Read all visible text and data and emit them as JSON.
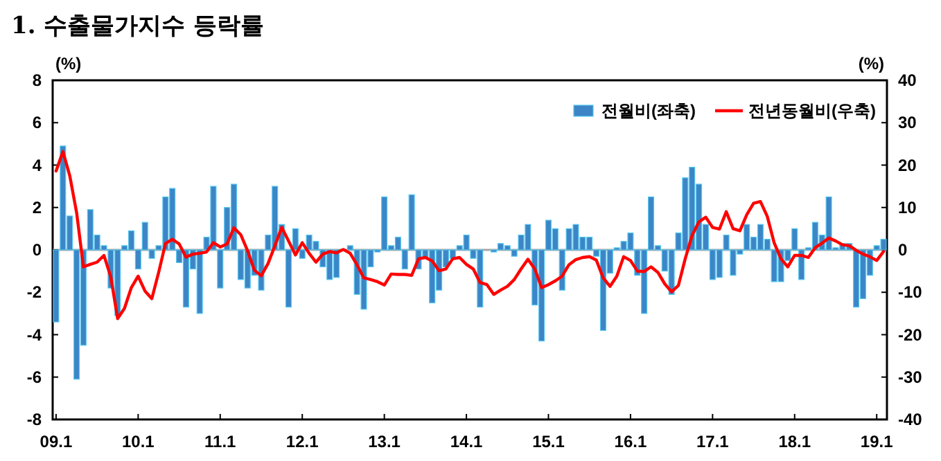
{
  "chart_data": {
    "type": "bar",
    "title": "1.  수출물가지수 등락률",
    "ylabel": "(%)",
    "y2label": "(%)",
    "categories": [
      "09.1",
      null,
      null,
      null,
      null,
      null,
      null,
      null,
      null,
      null,
      null,
      null,
      "10.1",
      null,
      null,
      null,
      null,
      null,
      null,
      null,
      null,
      null,
      null,
      null,
      "11.1",
      null,
      null,
      null,
      null,
      null,
      null,
      null,
      null,
      null,
      null,
      null,
      "12.1",
      null,
      null,
      null,
      null,
      null,
      null,
      null,
      null,
      null,
      null,
      null,
      "13.1",
      null,
      null,
      null,
      null,
      null,
      null,
      null,
      null,
      null,
      null,
      null,
      "14.1",
      null,
      null,
      null,
      null,
      null,
      null,
      null,
      null,
      null,
      null,
      null,
      "15.1",
      null,
      null,
      null,
      null,
      null,
      null,
      null,
      null,
      null,
      null,
      null,
      "16.1",
      null,
      null,
      null,
      null,
      null,
      null,
      null,
      null,
      null,
      null,
      null,
      "17.1",
      null,
      null,
      null,
      null,
      null,
      null,
      null,
      null,
      null,
      null,
      null,
      "18.1",
      null,
      null,
      null,
      null,
      null,
      null,
      null,
      null,
      null,
      null,
      null,
      "19.1",
      null
    ],
    "series": [
      {
        "name": "전월비(좌축)",
        "color": "#3d85c6",
        "values": [
          -3.4,
          4.9,
          1.6,
          -6.1,
          -4.5,
          1.9,
          0.7,
          0.2,
          -1.8,
          -3.1,
          0.2,
          0.9,
          -0.9,
          1.3,
          -0.4,
          0.2,
          2.5,
          2.9,
          -0.6,
          -2.7,
          -0.9,
          -3.0,
          0.6,
          3.0,
          -1.8,
          2.0,
          3.1,
          -1.4,
          -1.8,
          -1.2,
          -1.9,
          0.7,
          3.0,
          1.2,
          -2.7,
          1.0,
          -0.4,
          0.7,
          0.4,
          -0.8,
          -1.4,
          -1.3,
          null,
          0.2,
          -2.1,
          -2.8,
          -0.8,
          -0.1,
          2.5,
          0.2,
          0.6,
          -0.9,
          2.6,
          -0.9,
          -0.4,
          -2.5,
          -1.9,
          -0.8,
          -0.4,
          0.2,
          0.7,
          -0.4,
          -2.7,
          0,
          -0.1,
          0.3,
          0.2,
          -0.3,
          0.7,
          1.2,
          -2.6,
          -4.3,
          1.4,
          1.0,
          -1.9,
          1.0,
          1.2,
          0.6,
          0.6,
          -0.3,
          -3.8,
          -1.1,
          0.1,
          0.4,
          0.8,
          -1.2,
          -3.0,
          2.5,
          0.2,
          -1.0,
          -2.1,
          0.8,
          3.4,
          3.9,
          3.1,
          1.2,
          -1.4,
          -1.3,
          0.7,
          -1.2,
          -0.2,
          1.2,
          0.6,
          1.2,
          0.5,
          -1.5,
          -1.5,
          -0.5,
          1.0,
          -1.4,
          0.1,
          1.3,
          0.7,
          2.5,
          0.1,
          0.3,
          0.3,
          -2.7,
          -2.3,
          -1.2,
          0.2,
          0.5
        ]
      },
      {
        "name": "전년동월비(우축)",
        "type": "line",
        "axis": "y2",
        "color": "#ff0000",
        "values": [
          18.6,
          23.2,
          17.5,
          8.8,
          -4.0,
          -3.4,
          -2.9,
          -1.3,
          -6.4,
          -16.2,
          -13.8,
          -8.9,
          -6.2,
          -9.7,
          -11.5,
          -5.3,
          1.5,
          2.5,
          1.4,
          -1.7,
          -1.0,
          -0.8,
          -0.5,
          1.7,
          0.7,
          1.4,
          5.2,
          3.6,
          -0.2,
          -4.8,
          -6.1,
          -3.2,
          1.0,
          5.3,
          2.1,
          -1.2,
          1.7,
          -0.8,
          -2.9,
          -1.0,
          -0.4,
          -0.7,
          0.1,
          -0.8,
          -3.5,
          -6.6,
          -7.0,
          -7.5,
          -8.3,
          -5.7,
          -5.8,
          -5.8,
          -6.0,
          -2.1,
          -1.8,
          -2.6,
          -4.9,
          -4.5,
          -2.1,
          -1.8,
          -3.4,
          -4.5,
          -7.7,
          -8.2,
          -10.5,
          -9.5,
          -8.6,
          -7.0,
          -4.5,
          -2.2,
          -4.5,
          -8.9,
          -8.2,
          -7.3,
          -6.2,
          -3.5,
          -2.3,
          -1.8,
          -1.6,
          -2.4,
          -6.6,
          -8.6,
          -6.2,
          -1.6,
          -2.5,
          -5.0,
          -5.1,
          -4.0,
          -5.3,
          -8.0,
          -9.9,
          -8.4,
          -2.1,
          3.4,
          6.6,
          7.7,
          5.3,
          4.9,
          9.0,
          5.0,
          4.5,
          8.3,
          11.0,
          11.4,
          7.9,
          1.7,
          -2.1,
          -4.0,
          -1.3,
          -1.3,
          -1.8,
          0.5,
          1.6,
          2.8,
          2.1,
          1.2,
          1.0,
          -0.1,
          -1.0,
          -1.6,
          -2.5,
          -0.4
        ]
      }
    ],
    "ylim": [
      -8,
      8
    ],
    "yticks": [
      -8,
      -6,
      -4,
      -2,
      0,
      2,
      4,
      6,
      8
    ],
    "y2lim": [
      -40,
      40
    ],
    "y2ticks": [
      -40,
      -30,
      -20,
      -10,
      0,
      10,
      20,
      30,
      40
    ],
    "ref_lines": [
      {
        "axis": "y",
        "value": 0,
        "color": "#a6a6a6"
      }
    ],
    "legend": "top right",
    "marker": "none",
    "line_style": "solid"
  }
}
